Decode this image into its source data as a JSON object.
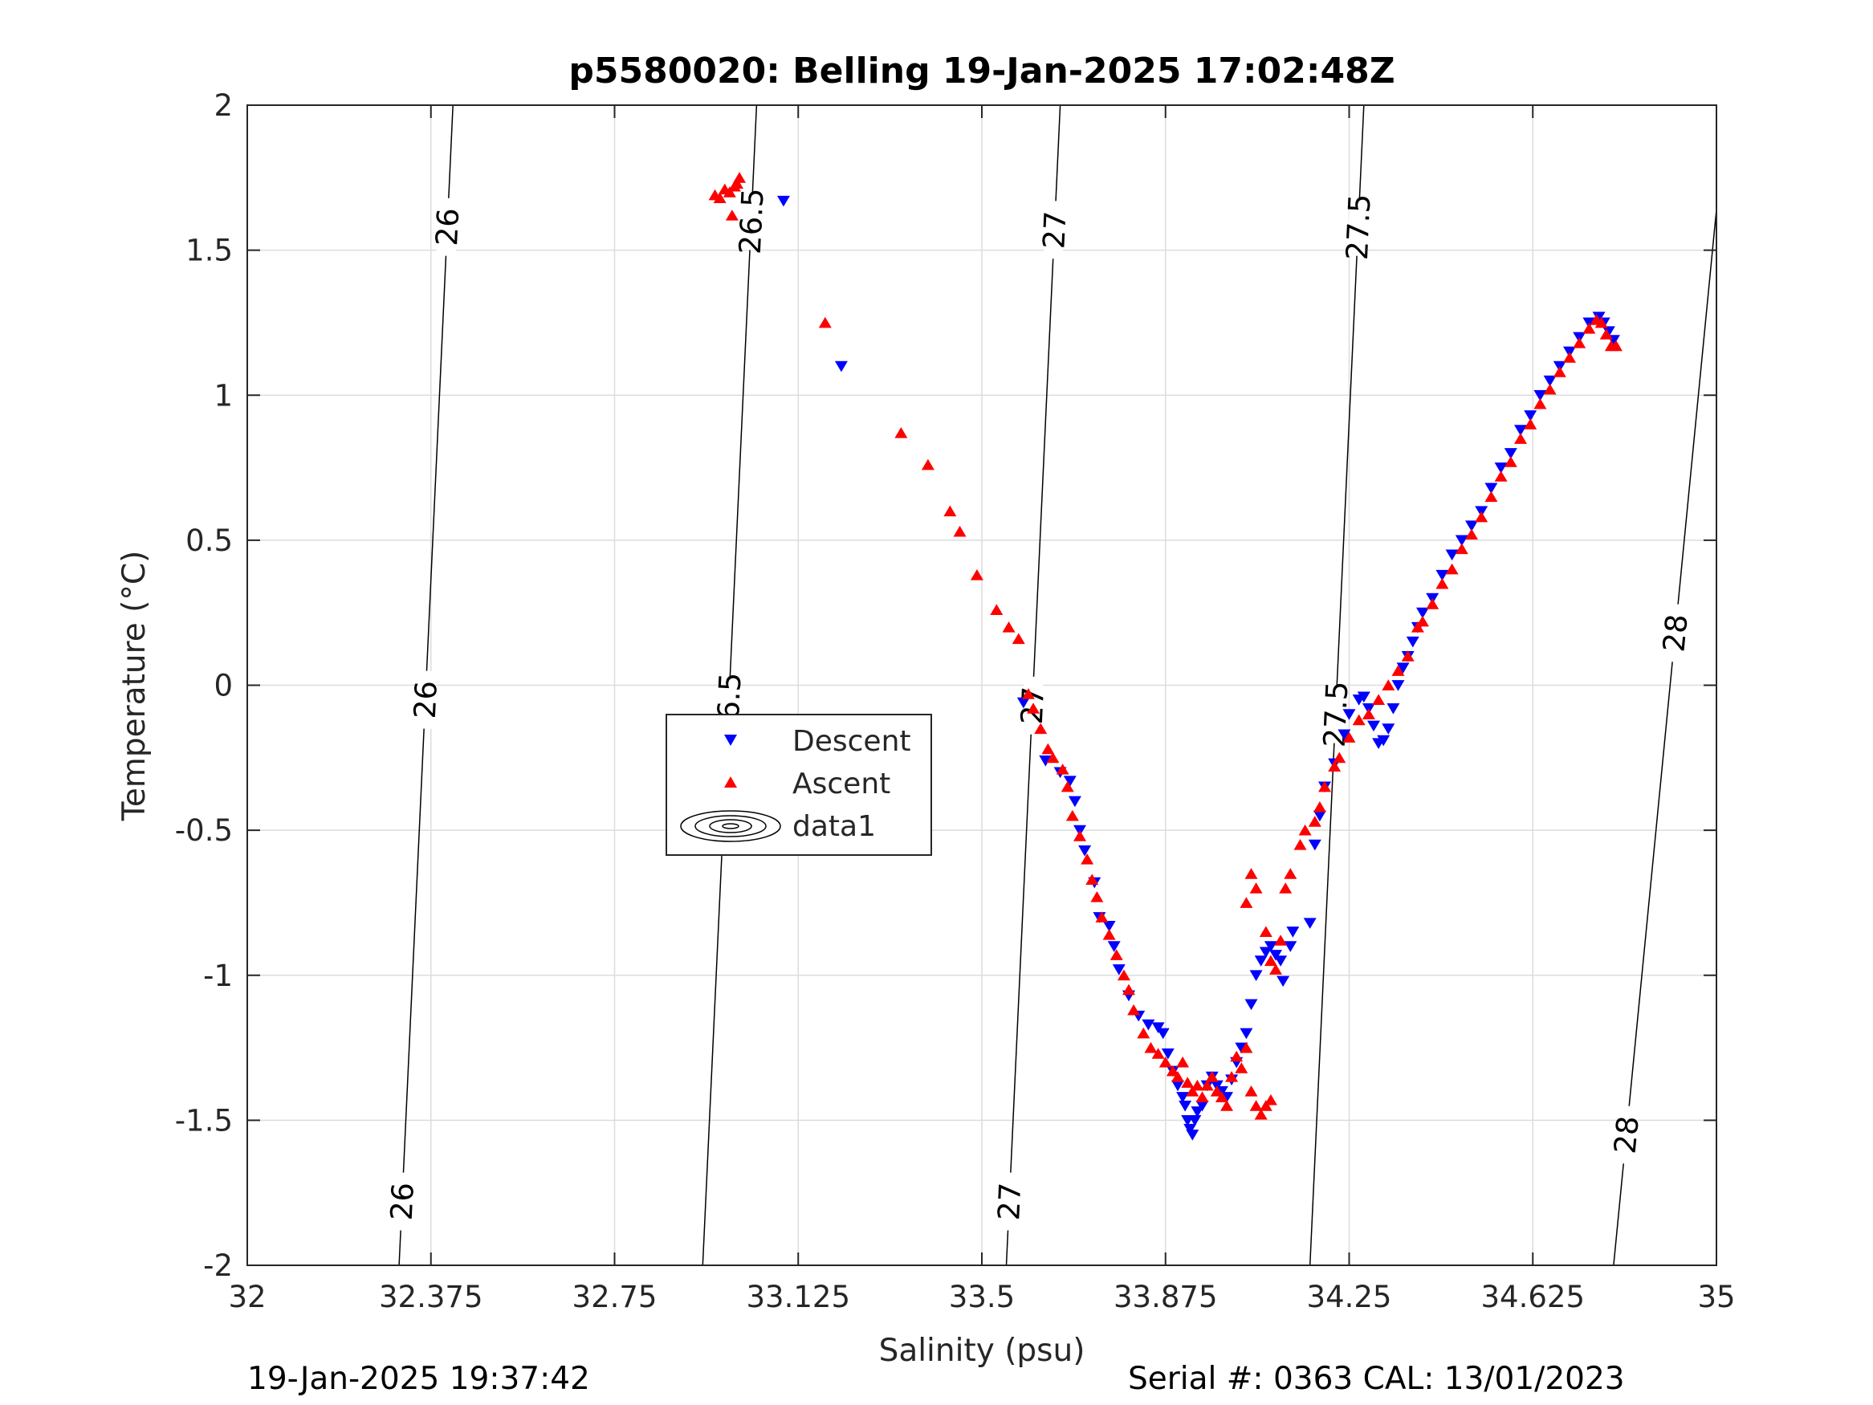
{
  "footer": {
    "timestamp": "19-Jan-2025 19:37:42",
    "serial": "Serial #: 0363  CAL: 13/01/2023"
  },
  "chart_data": {
    "type": "scatter",
    "title": "p5580020: Belling 19-Jan-2025 17:02:48Z",
    "xlabel": "Salinity (psu)",
    "ylabel": "Temperature (°C)",
    "xlim": [
      32,
      35
    ],
    "ylim": [
      -2,
      2
    ],
    "x_ticks": [
      32,
      32.375,
      32.75,
      33.125,
      33.5,
      33.875,
      34.25,
      34.625,
      35
    ],
    "x_tick_labels": [
      "32",
      "32.375",
      "32.75",
      "33.125",
      "33.5",
      "33.875",
      "34.25",
      "34.625",
      "35"
    ],
    "y_ticks": [
      2,
      1.5,
      1,
      0.5,
      0,
      -0.5,
      -1,
      -1.5,
      -2
    ],
    "y_tick_labels": [
      "2",
      "1.5",
      "1",
      "0.5",
      "0",
      "-0.5",
      "-1",
      "-1.5",
      "-2"
    ],
    "grid": true,
    "legend_position": "center-left",
    "legend": [
      "Descent",
      "Ascent",
      "data1"
    ],
    "colors": {
      "descent": "#0000ff",
      "ascent": "#ff0000",
      "contour": "#000000",
      "grid": "#dcdcdc"
    },
    "isopycnals": [
      {
        "label": "26",
        "points": [
          [
            32.42,
            2.0
          ],
          [
            32.31,
            -2.0
          ]
        ],
        "label_y": [
          1.58,
          -0.05,
          -1.78
        ]
      },
      {
        "label": "26.5",
        "points": [
          [
            33.04,
            2.0
          ],
          [
            32.93,
            -2.0
          ]
        ],
        "label_y": [
          1.6,
          -0.07
        ]
      },
      {
        "label": "27",
        "points": [
          [
            33.66,
            2.0
          ],
          [
            33.55,
            -2.0
          ]
        ],
        "label_y": [
          1.57,
          -0.07,
          -1.78
        ]
      },
      {
        "label": "27.5",
        "points": [
          [
            34.28,
            2.0
          ],
          [
            34.17,
            -2.0
          ]
        ],
        "label_y": [
          1.58,
          -0.1
        ]
      },
      {
        "label": "28",
        "points": [
          [
            35.0,
            1.64
          ],
          [
            34.79,
            -2.0
          ]
        ],
        "label_y": [
          0.18,
          -1.55
        ]
      }
    ],
    "series": [
      {
        "name": "Descent",
        "marker": "triangle-down",
        "points": [
          [
            33.213,
            1.1
          ],
          [
            33.095,
            1.67
          ],
          [
            33.585,
            -0.06
          ],
          [
            33.63,
            -0.26
          ],
          [
            33.66,
            -0.3
          ],
          [
            33.68,
            -0.33
          ],
          [
            33.69,
            -0.4
          ],
          [
            33.7,
            -0.5
          ],
          [
            33.71,
            -0.57
          ],
          [
            33.73,
            -0.68
          ],
          [
            33.74,
            -0.8
          ],
          [
            33.76,
            -0.83
          ],
          [
            33.77,
            -0.9
          ],
          [
            33.78,
            -0.98
          ],
          [
            33.8,
            -1.07
          ],
          [
            33.82,
            -1.14
          ],
          [
            33.84,
            -1.17
          ],
          [
            33.86,
            -1.18
          ],
          [
            33.87,
            -1.2
          ],
          [
            33.88,
            -1.27
          ],
          [
            33.89,
            -1.33
          ],
          [
            33.9,
            -1.38
          ],
          [
            33.91,
            -1.42
          ],
          [
            33.915,
            -1.45
          ],
          [
            33.92,
            -1.5
          ],
          [
            33.925,
            -1.53
          ],
          [
            33.93,
            -1.55
          ],
          [
            33.935,
            -1.5
          ],
          [
            33.94,
            -1.47
          ],
          [
            33.95,
            -1.45
          ],
          [
            33.96,
            -1.38
          ],
          [
            33.97,
            -1.35
          ],
          [
            33.98,
            -1.38
          ],
          [
            33.99,
            -1.4
          ],
          [
            34.0,
            -1.42
          ],
          [
            34.01,
            -1.36
          ],
          [
            34.02,
            -1.3
          ],
          [
            34.03,
            -1.25
          ],
          [
            34.04,
            -1.2
          ],
          [
            34.05,
            -1.1
          ],
          [
            34.06,
            -1.0
          ],
          [
            34.07,
            -0.95
          ],
          [
            34.08,
            -0.92
          ],
          [
            34.09,
            -0.9
          ],
          [
            34.1,
            -0.93
          ],
          [
            34.11,
            -0.95
          ],
          [
            34.115,
            -1.02
          ],
          [
            34.13,
            -0.9
          ],
          [
            34.135,
            -0.85
          ],
          [
            34.17,
            -0.82
          ],
          [
            34.18,
            -0.55
          ],
          [
            34.19,
            -0.45
          ],
          [
            34.2,
            -0.35
          ],
          [
            34.22,
            -0.27
          ],
          [
            34.24,
            -0.17
          ],
          [
            34.25,
            -0.1
          ],
          [
            34.27,
            -0.05
          ],
          [
            34.28,
            -0.04
          ],
          [
            34.29,
            -0.08
          ],
          [
            34.3,
            -0.14
          ],
          [
            34.31,
            -0.2
          ],
          [
            34.32,
            -0.19
          ],
          [
            34.33,
            -0.15
          ],
          [
            34.34,
            -0.08
          ],
          [
            34.35,
            0.0
          ],
          [
            34.36,
            0.06
          ],
          [
            34.37,
            0.1
          ],
          [
            34.38,
            0.15
          ],
          [
            34.39,
            0.2
          ],
          [
            34.4,
            0.25
          ],
          [
            34.42,
            0.3
          ],
          [
            34.44,
            0.38
          ],
          [
            34.46,
            0.45
          ],
          [
            34.48,
            0.5
          ],
          [
            34.5,
            0.55
          ],
          [
            34.52,
            0.6
          ],
          [
            34.54,
            0.68
          ],
          [
            34.56,
            0.75
          ],
          [
            34.58,
            0.8
          ],
          [
            34.6,
            0.88
          ],
          [
            34.62,
            0.93
          ],
          [
            34.64,
            1.0
          ],
          [
            34.66,
            1.05
          ],
          [
            34.68,
            1.1
          ],
          [
            34.7,
            1.15
          ],
          [
            34.72,
            1.2
          ],
          [
            34.74,
            1.25
          ],
          [
            34.76,
            1.27
          ],
          [
            34.77,
            1.25
          ],
          [
            34.78,
            1.22
          ],
          [
            34.79,
            1.19
          ]
        ]
      },
      {
        "name": "Ascent",
        "marker": "triangle-up",
        "points": [
          [
            32.955,
            1.69
          ],
          [
            32.965,
            1.68
          ],
          [
            32.975,
            1.71
          ],
          [
            32.985,
            1.7
          ],
          [
            32.995,
            1.72
          ],
          [
            33.0,
            1.73
          ],
          [
            33.005,
            1.75
          ],
          [
            32.99,
            1.62
          ],
          [
            33.18,
            1.25
          ],
          [
            33.335,
            0.87
          ],
          [
            33.39,
            0.76
          ],
          [
            33.435,
            0.6
          ],
          [
            33.455,
            0.53
          ],
          [
            33.49,
            0.38
          ],
          [
            33.53,
            0.26
          ],
          [
            33.555,
            0.2
          ],
          [
            33.575,
            0.16
          ],
          [
            33.595,
            -0.03
          ],
          [
            33.605,
            -0.08
          ],
          [
            33.62,
            -0.15
          ],
          [
            33.635,
            -0.22
          ],
          [
            33.645,
            -0.25
          ],
          [
            33.665,
            -0.29
          ],
          [
            33.675,
            -0.35
          ],
          [
            33.685,
            -0.45
          ],
          [
            33.7,
            -0.52
          ],
          [
            33.715,
            -0.6
          ],
          [
            33.725,
            -0.67
          ],
          [
            33.735,
            -0.73
          ],
          [
            33.745,
            -0.8
          ],
          [
            33.76,
            -0.86
          ],
          [
            33.775,
            -0.93
          ],
          [
            33.79,
            -1.0
          ],
          [
            33.8,
            -1.05
          ],
          [
            33.81,
            -1.12
          ],
          [
            33.83,
            -1.2
          ],
          [
            33.845,
            -1.25
          ],
          [
            33.86,
            -1.27
          ],
          [
            33.875,
            -1.3
          ],
          [
            33.89,
            -1.33
          ],
          [
            33.9,
            -1.35
          ],
          [
            33.91,
            -1.3
          ],
          [
            33.92,
            -1.37
          ],
          [
            33.93,
            -1.4
          ],
          [
            33.94,
            -1.38
          ],
          [
            33.95,
            -1.42
          ],
          [
            33.96,
            -1.38
          ],
          [
            33.97,
            -1.35
          ],
          [
            33.98,
            -1.4
          ],
          [
            33.99,
            -1.42
          ],
          [
            34.0,
            -1.45
          ],
          [
            34.01,
            -1.35
          ],
          [
            34.02,
            -1.28
          ],
          [
            34.03,
            -1.32
          ],
          [
            34.04,
            -1.25
          ],
          [
            34.05,
            -1.4
          ],
          [
            34.06,
            -1.45
          ],
          [
            34.07,
            -1.48
          ],
          [
            34.08,
            -1.45
          ],
          [
            34.09,
            -1.43
          ],
          [
            34.04,
            -0.75
          ],
          [
            34.05,
            -0.65
          ],
          [
            34.06,
            -0.7
          ],
          [
            34.08,
            -0.85
          ],
          [
            34.09,
            -0.95
          ],
          [
            34.1,
            -0.98
          ],
          [
            34.11,
            -0.88
          ],
          [
            34.12,
            -0.7
          ],
          [
            34.13,
            -0.65
          ],
          [
            34.15,
            -0.55
          ],
          [
            34.16,
            -0.5
          ],
          [
            34.18,
            -0.47
          ],
          [
            34.19,
            -0.42
          ],
          [
            34.2,
            -0.35
          ],
          [
            34.22,
            -0.28
          ],
          [
            34.23,
            -0.25
          ],
          [
            34.25,
            -0.18
          ],
          [
            34.27,
            -0.12
          ],
          [
            34.29,
            -0.1
          ],
          [
            34.31,
            -0.05
          ],
          [
            34.33,
            0.0
          ],
          [
            34.35,
            0.05
          ],
          [
            34.37,
            0.1
          ],
          [
            34.39,
            0.2
          ],
          [
            34.4,
            0.22
          ],
          [
            34.42,
            0.28
          ],
          [
            34.44,
            0.35
          ],
          [
            34.46,
            0.4
          ],
          [
            34.48,
            0.47
          ],
          [
            34.5,
            0.52
          ],
          [
            34.52,
            0.58
          ],
          [
            34.54,
            0.65
          ],
          [
            34.56,
            0.72
          ],
          [
            34.58,
            0.77
          ],
          [
            34.6,
            0.85
          ],
          [
            34.62,
            0.9
          ],
          [
            34.64,
            0.97
          ],
          [
            34.66,
            1.02
          ],
          [
            34.68,
            1.08
          ],
          [
            34.7,
            1.13
          ],
          [
            34.72,
            1.18
          ],
          [
            34.74,
            1.23
          ],
          [
            34.755,
            1.26
          ],
          [
            34.765,
            1.25
          ],
          [
            34.775,
            1.21
          ],
          [
            34.785,
            1.17
          ],
          [
            34.795,
            1.17
          ]
        ]
      }
    ]
  }
}
